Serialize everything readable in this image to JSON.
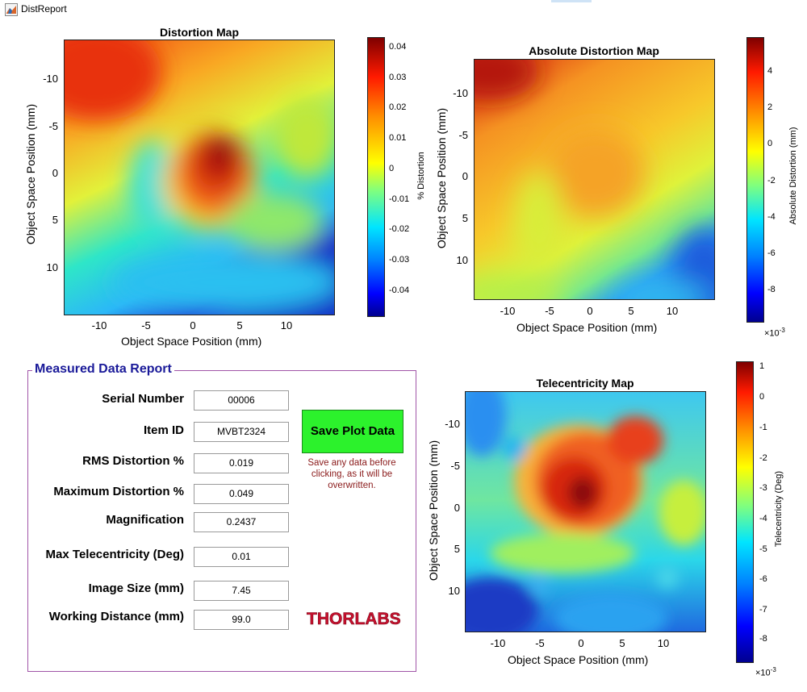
{
  "window": {
    "title": "DistReport"
  },
  "plots": [
    {
      "id": "distortion",
      "title": "Distortion Map",
      "xlabel": "Object Space Position (mm)",
      "ylabel": "Object Space Position (mm)",
      "x_ticks": [
        "-10",
        "-5",
        "0",
        "5",
        "10"
      ],
      "y_ticks": [
        "-10",
        "-5",
        "0",
        "5",
        "10"
      ],
      "colorbar": {
        "label": "% Distortion",
        "ticks": [
          "0.04",
          "0.03",
          "0.02",
          "0.01",
          "0",
          "-0.01",
          "-0.02",
          "-0.03",
          "-0.04"
        ],
        "multiplier": ""
      }
    },
    {
      "id": "absolute",
      "title": "Absolute Distortion Map",
      "xlabel": "Object Space Position (mm)",
      "ylabel": "Object Space Position (mm)",
      "x_ticks": [
        "-10",
        "-5",
        "0",
        "5",
        "10"
      ],
      "y_ticks": [
        "-10",
        "-5",
        "0",
        "5",
        "10"
      ],
      "colorbar": {
        "label": "Absolute Distortion (mm)",
        "ticks": [
          "4",
          "2",
          "0",
          "-2",
          "-4",
          "-6",
          "-8"
        ],
        "multiplier": "×10",
        "exponent": "-3"
      }
    },
    {
      "id": "telecentricity",
      "title": "Telecentricity Map",
      "xlabel": "Object Space Position (mm)",
      "ylabel": "Object Space Position (mm)",
      "x_ticks": [
        "-10",
        "-5",
        "0",
        "5",
        "10"
      ],
      "y_ticks": [
        "-10",
        "-5",
        "0",
        "5",
        "10"
      ],
      "colorbar": {
        "label": "Telecentricity (Deg)",
        "ticks": [
          "1",
          "0",
          "-1",
          "-2",
          "-3",
          "-4",
          "-5",
          "-6",
          "-7",
          "-8"
        ],
        "multiplier": "×10",
        "exponent": "-3"
      }
    }
  ],
  "report": {
    "legend": "Measured Data Report",
    "fields": [
      {
        "label": "Serial Number",
        "value": "00006"
      },
      {
        "label": "Item ID",
        "value": "MVBT2324"
      },
      {
        "label": "RMS Distortion %",
        "value": "0.019"
      },
      {
        "label": "Maximum Distortion %",
        "value": "0.049"
      },
      {
        "label": "Magnification",
        "value": "0.2437"
      },
      {
        "label": "Max Telecentricity (Deg)",
        "value": "0.01"
      },
      {
        "label": "Image Size (mm)",
        "value": "7.45"
      },
      {
        "label": "Working Distance (mm)",
        "value": "99.0"
      }
    ],
    "save_button": "Save Plot Data",
    "save_note": "Save any data before clicking, as it will be overwritten.",
    "logo": "THORLABS"
  },
  "colors": {
    "button_green": "#2cf22c",
    "panel_border": "#a055a8",
    "legend_blue": "#1a1a99",
    "note_red": "#8a1a1a",
    "logo_red": "#c8102e"
  }
}
